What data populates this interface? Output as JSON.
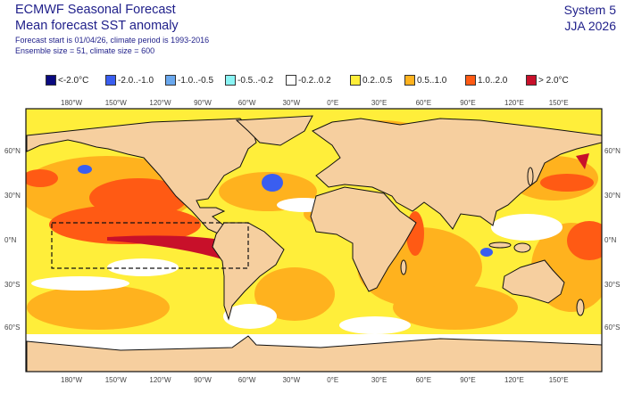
{
  "header": {
    "title": "ECMWF Seasonal Forecast",
    "subtitle": "Mean forecast SST anomaly",
    "info_line1": "Forecast start is 01/04/26, climate period is 1993-2016",
    "info_line2": "Ensemble size = 51, climate size = 600",
    "system": "System 5",
    "season": "JJA 2026"
  },
  "legend": [
    {
      "label": "<-2.0°C",
      "color": "#0a0a80"
    },
    {
      "label": "-2.0..-1.0",
      "color": "#3a5ef0"
    },
    {
      "label": "-1.0..-0.5",
      "color": "#6aa8ee"
    },
    {
      "label": "-0.5..-0.2",
      "color": "#8af4f4"
    },
    {
      "label": "-0.2..0.2",
      "color": "#ffffff"
    },
    {
      "label": "0.2..0.5",
      "color": "#ffee3a"
    },
    {
      "label": "0.5..1.0",
      "color": "#ffb21e"
    },
    {
      "label": "1.0..2.0",
      "color": "#ff5a14"
    },
    {
      "label": "> 2.0°C",
      "color": "#c8102a"
    }
  ],
  "axes": {
    "lon_labels": [
      "180°W",
      "150°W",
      "120°W",
      "90°W",
      "60°W",
      "30°W",
      "0°E",
      "30°E",
      "60°E",
      "90°E",
      "120°E",
      "150°E"
    ],
    "lat_labels": [
      "60°N",
      "30°N",
      "0°N",
      "30°S",
      "60°S"
    ]
  }
}
